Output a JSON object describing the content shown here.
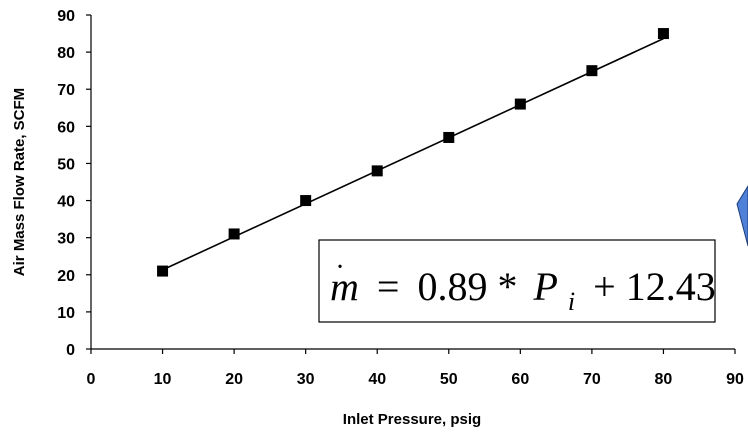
{
  "chart_data": {
    "type": "scatter",
    "x": [
      10,
      20,
      30,
      40,
      50,
      60,
      70,
      80
    ],
    "series": [
      {
        "values": [
          21,
          31,
          40,
          48,
          57,
          66,
          75,
          85
        ],
        "marker": "square",
        "color": "#000000"
      }
    ],
    "trendline": {
      "slope": 0.89,
      "intercept": 12.43,
      "x_range": [
        10,
        80
      ],
      "color": "#000000"
    },
    "equation": {
      "lhs": "m",
      "equals": "=",
      "coef": "0.89",
      "times": "*",
      "var": "P",
      "subscript": "i",
      "plus": "+",
      "const": "12.43"
    },
    "xlabel": "Inlet Pressure, psig",
    "ylabel": "Air Mass Flow Rate, SCFM",
    "xlim": [
      0,
      90
    ],
    "ylim": [
      0,
      90
    ],
    "xticks": [
      0,
      10,
      20,
      30,
      40,
      50,
      60,
      70,
      80,
      90
    ],
    "yticks": [
      0,
      10,
      20,
      30,
      40,
      50,
      60,
      70,
      80,
      90
    ],
    "grid": false,
    "legend": "none",
    "decoration_color": "#4f81d8"
  }
}
